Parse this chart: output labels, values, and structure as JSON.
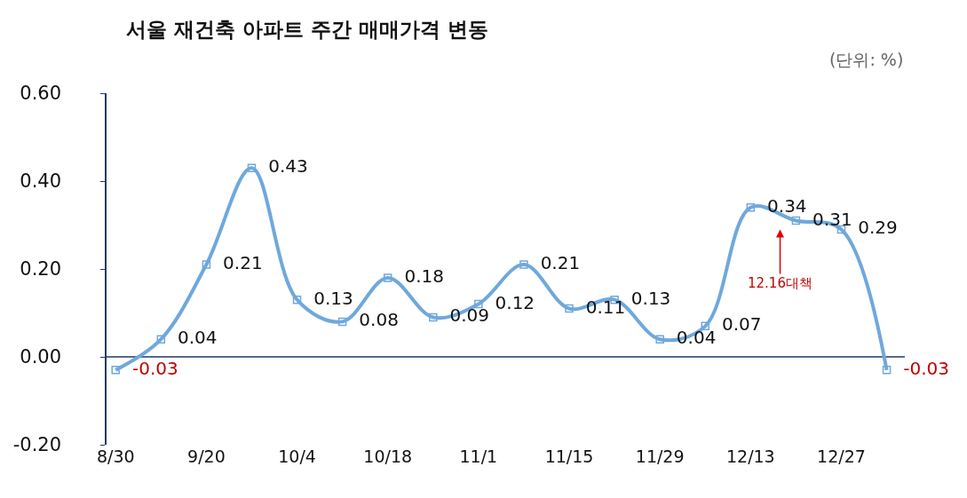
{
  "chart_data": {
    "type": "line",
    "title": "서울 재건축 아파트 주간 매매가격 변동",
    "categories": [
      "8/30",
      null,
      "9/20",
      null,
      "10/4",
      null,
      "10/18",
      null,
      "11/1",
      null,
      "11/15",
      null,
      "11/29",
      null,
      "12/13",
      null,
      "12/27",
      null
    ],
    "series": [
      {
        "color": "#6fa8dc",
        "values": [
          -0.03,
          0.04,
          0.21,
          0.43,
          0.13,
          0.08,
          0.18,
          0.09,
          0.12,
          0.21,
          0.11,
          0.13,
          0.04,
          0.07,
          0.34,
          0.31,
          0.29,
          -0.03
        ]
      }
    ],
    "ylim": [
      -0.2,
      0.6
    ],
    "yticks": [
      {
        "value": -0.2,
        "label": "-0.20"
      },
      {
        "value": 0,
        "label": "0.00"
      },
      {
        "value": 0.2,
        "label": "0.20"
      },
      {
        "value": 0.4,
        "label": "0.40"
      },
      {
        "value": 0.6,
        "label": "0.60"
      }
    ],
    "data_labels": true,
    "marker": "square",
    "ref_lines": [
      {
        "axis": "y",
        "value": 0,
        "color": "#1f3864"
      }
    ],
    "annotations": [
      "(단위: %)",
      "12.16대책"
    ]
  }
}
